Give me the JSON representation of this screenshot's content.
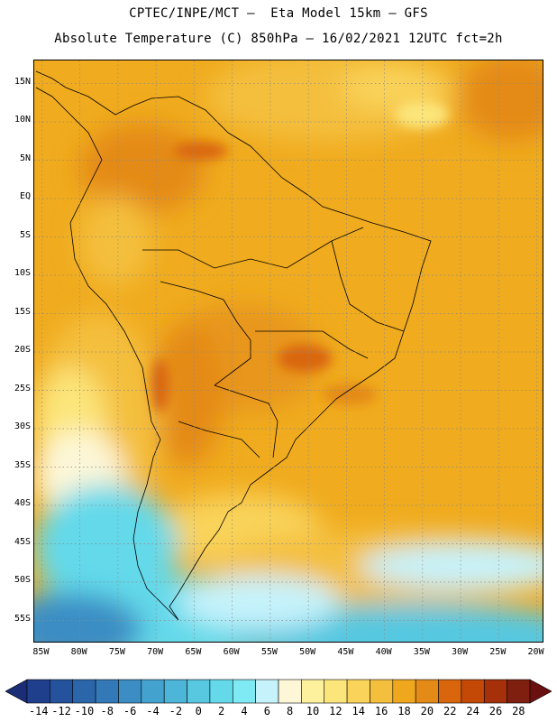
{
  "header": {
    "line1": "CPTEC/INPE/MCT –  Eta Model 15km – GFS",
    "line2": "Absolute Temperature (C) 850hPa – 16/02/2021 12UTC fct=2h"
  },
  "map": {
    "lon_range": [
      -86,
      -19
    ],
    "lat_range": [
      18,
      -58
    ],
    "lat_labels": [
      "15N",
      "10N",
      "5N",
      "EQ",
      "5S",
      "10S",
      "15S",
      "20S",
      "25S",
      "30S",
      "35S",
      "40S",
      "45S",
      "50S",
      "55S"
    ],
    "lat_values": [
      15,
      10,
      5,
      0,
      -5,
      -10,
      -15,
      -20,
      -25,
      -30,
      -35,
      -40,
      -45,
      -50,
      -55
    ],
    "lon_labels": [
      "85W",
      "80W",
      "75W",
      "70W",
      "65W",
      "60W",
      "55W",
      "50W",
      "45W",
      "40W",
      "35W",
      "30W",
      "25W",
      "20W"
    ],
    "lon_values": [
      -85,
      -80,
      -75,
      -70,
      -65,
      -60,
      -55,
      -50,
      -45,
      -40,
      -35,
      -30,
      -25,
      -20
    ],
    "grid": true
  },
  "colorbar": {
    "labels": [
      "-14",
      "-12",
      "-10",
      "-8",
      "-6",
      "-4",
      "-2",
      "0",
      "2",
      "4",
      "6",
      "8",
      "10",
      "12",
      "14",
      "16",
      "18",
      "20",
      "22",
      "24",
      "26",
      "28"
    ],
    "colors": [
      "#1f3f8c",
      "#24529c",
      "#2b66ab",
      "#3379b8",
      "#3b8dc4",
      "#44a2cf",
      "#4db5d8",
      "#57c8e0",
      "#64d9ea",
      "#7fe9f4",
      "#c6f3fb",
      "#fdf7d8",
      "#fdf19e",
      "#fce57a",
      "#f9d35a",
      "#f4bf3d",
      "#efa81e",
      "#e48a16",
      "#d9660c",
      "#c44907",
      "#a5300a",
      "#7e1f0f"
    ],
    "under_color": "#1b2d76",
    "over_color": "#6b1010"
  }
}
